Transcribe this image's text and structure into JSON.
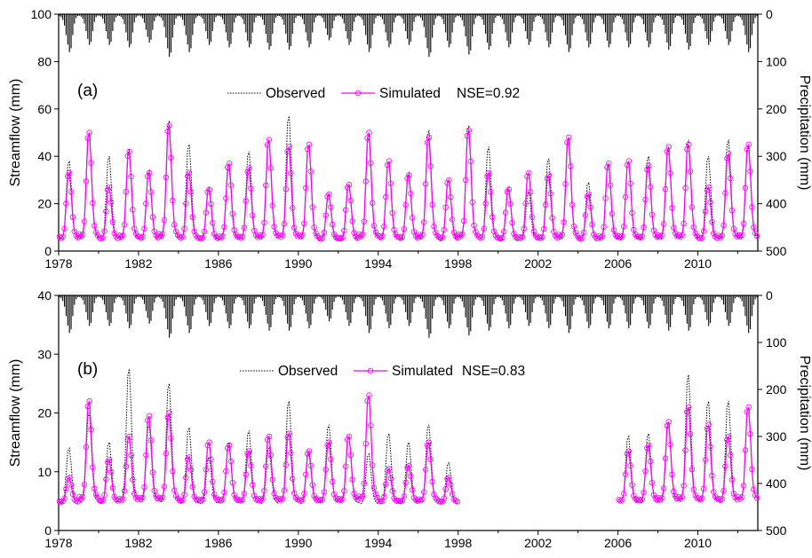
{
  "chart_data": [
    {
      "panel": "(a)",
      "type": "line",
      "nse_label": "NSE=0.92",
      "ylabel": "Streamflow (mm)",
      "y2label": "Precipitation (mm)",
      "ylim": [
        0,
        100
      ],
      "yticks": [
        "0",
        "20",
        "40",
        "60",
        "80",
        "100"
      ],
      "y2lim": [
        0,
        500
      ],
      "y2ticks": [
        "0",
        "100",
        "200",
        "300",
        "400",
        "500"
      ],
      "xlim": [
        1978,
        2013
      ],
      "xticks": [
        "1978",
        "1982",
        "1986",
        "1990",
        "1994",
        "1998",
        "2002",
        "2006",
        "2010"
      ],
      "legend_position": "top-center",
      "series": [
        {
          "name": "Observed",
          "style": "dotted",
          "color": "#000000",
          "annual_peaks": [
            38,
            50,
            40,
            43,
            34,
            55,
            45,
            27,
            35,
            42,
            47,
            57,
            45,
            24,
            28,
            48,
            38,
            33,
            51,
            30,
            53,
            44,
            27,
            25,
            39,
            46,
            29,
            36,
            38,
            40,
            43,
            47,
            40,
            47,
            44
          ]
        },
        {
          "name": "Simulated",
          "style": "solid-circles",
          "color": "#ff00ff",
          "annual_peaks": [
            33,
            50,
            27,
            42,
            33,
            53,
            33,
            26,
            37,
            35,
            47,
            44,
            45,
            24,
            28,
            50,
            38,
            32,
            48,
            30,
            51,
            33,
            26,
            33,
            32,
            48,
            24,
            37,
            38,
            36,
            44,
            45,
            27,
            41,
            45
          ]
        }
      ],
      "precipitation_bars": {
        "name": "Precipitation",
        "color": "#000000",
        "annual_max": [
          80,
          65,
          65,
          70,
          60,
          90,
          80,
          65,
          70,
          70,
          75,
          75,
          70,
          55,
          65,
          80,
          70,
          65,
          90,
          70,
          85,
          75,
          70,
          65,
          70,
          80,
          70,
          70,
          70,
          70,
          75,
          75,
          65,
          65,
          80
        ]
      }
    },
    {
      "panel": "(b)",
      "type": "line",
      "nse_label": "NSE=0.83",
      "ylabel": "Streamflow (mm)",
      "y2label": "Precipitation (mm)",
      "ylim": [
        0,
        40
      ],
      "yticks": [
        "0",
        "10",
        "20",
        "30",
        "40"
      ],
      "y2lim": [
        0,
        500
      ],
      "y2ticks": [
        "0",
        "100",
        "200",
        "300",
        "400",
        "500"
      ],
      "xlim": [
        1978,
        2013
      ],
      "xticks": [
        "1978",
        "1982",
        "1986",
        "1990",
        "1994",
        "1998",
        "2002",
        "2006",
        "2010"
      ],
      "legend_position": "top-center",
      "data_gap": [
        1998,
        2006
      ],
      "series": [
        {
          "name": "Observed",
          "style": "dotted",
          "color": "#000000",
          "annual_peaks": [
            14,
            20,
            15,
            27.5,
            18,
            25,
            17.5,
            12.5,
            15,
            17,
            14,
            22,
            13,
            18,
            16,
            13,
            16.5,
            15,
            18,
            11.5,
            null,
            null,
            null,
            null,
            null,
            null,
            null,
            null,
            16,
            16.5,
            18,
            26.5,
            22,
            22
          ]
        },
        {
          "name": "Simulated",
          "style": "solid-circles",
          "color": "#ff00ff",
          "annual_peaks": [
            9,
            22,
            12,
            16,
            19.5,
            20,
            12.5,
            15,
            14.5,
            13.5,
            16,
            16.5,
            13.5,
            15,
            16,
            23,
            10.5,
            11,
            15,
            9,
            null,
            null,
            null,
            null,
            null,
            null,
            null,
            null,
            13.5,
            14.5,
            18.5,
            21,
            18,
            16,
            21
          ]
        }
      ],
      "precipitation_bars": {
        "name": "Precipitation",
        "color": "#000000",
        "annual_max": [
          80,
          65,
          65,
          70,
          60,
          90,
          80,
          65,
          70,
          70,
          75,
          75,
          70,
          55,
          65,
          80,
          70,
          65,
          90,
          70,
          85,
          75,
          70,
          65,
          70,
          80,
          70,
          70,
          70,
          70,
          75,
          75,
          65,
          65,
          80
        ]
      }
    }
  ]
}
